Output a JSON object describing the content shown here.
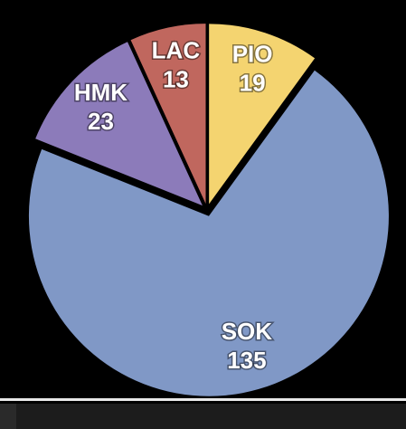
{
  "chart_data": {
    "type": "pie",
    "categories": [
      "PIO",
      "SOK",
      "HMK",
      "LAC"
    ],
    "values": [
      19,
      135,
      23,
      13
    ],
    "colors": [
      "#f4d470",
      "#8098c6",
      "#8c7bba",
      "#c0675e"
    ]
  }
}
